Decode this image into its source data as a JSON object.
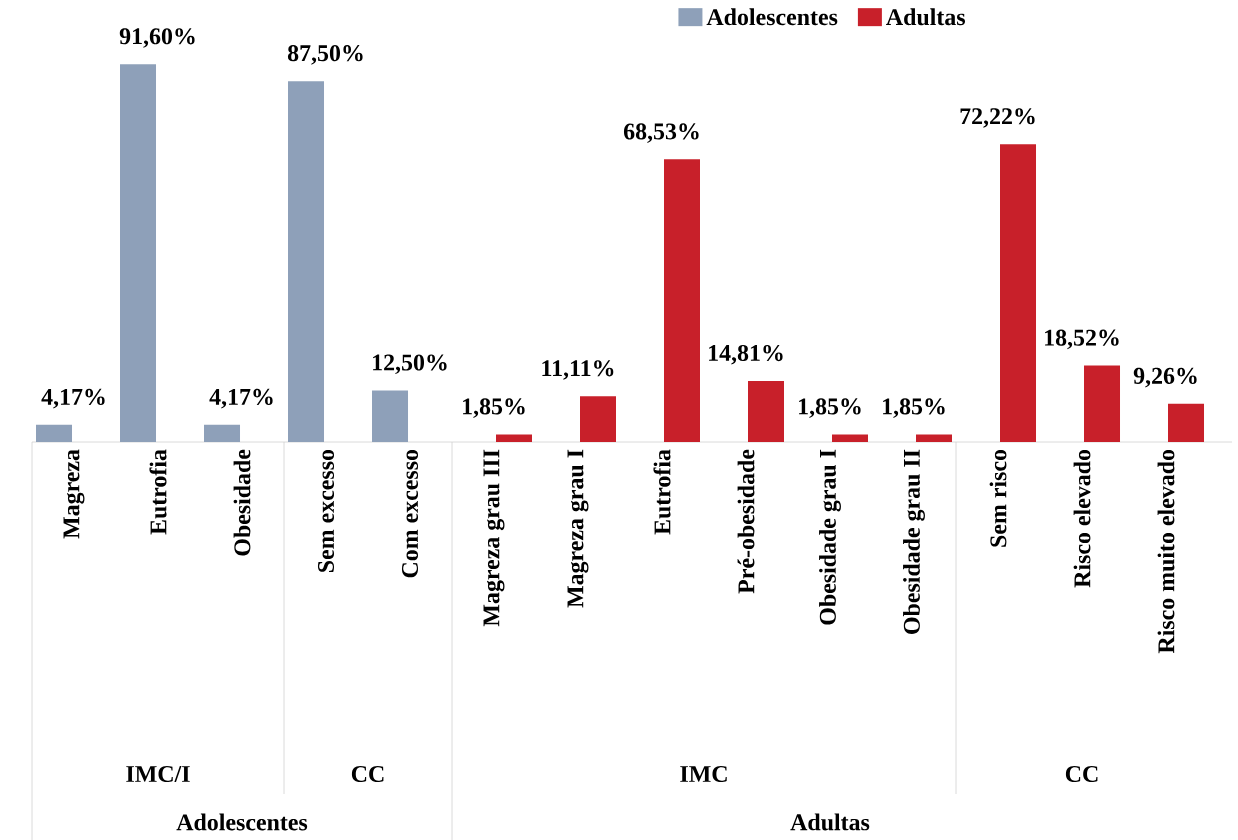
{
  "chart_data": {
    "type": "bar",
    "categories": [
      "Magreza",
      "Eutrofia",
      "Obesidade",
      "Sem excesso",
      "Com excesso",
      "Magreza grau III",
      "Magreza grau I",
      "Eutrofia",
      "Pré-obesidade",
      "Obesidade grau I",
      "Obesidade grau II",
      "Sem risco",
      "Risco elevado",
      "Risco muito elevado"
    ],
    "series": [
      {
        "name": "Adolescentes",
        "color": "#8ea0b9",
        "values": [
          4.17,
          91.6,
          4.17,
          87.5,
          12.5,
          null,
          null,
          null,
          null,
          null,
          null,
          null,
          null,
          null
        ],
        "value_labels": [
          "4,17%",
          "91,60%",
          "4,17%",
          "87,50%",
          "12,50%",
          null,
          null,
          null,
          null,
          null,
          null,
          null,
          null,
          null
        ]
      },
      {
        "name": "Adultas",
        "color": "#c8202a",
        "values": [
          null,
          null,
          null,
          null,
          null,
          1.85,
          11.11,
          68.53,
          14.81,
          1.85,
          1.85,
          72.22,
          18.52,
          9.26
        ],
        "value_labels": [
          null,
          null,
          null,
          null,
          null,
          "1,85%",
          "11,11%",
          "68,53%",
          "14,81%",
          "1,85%",
          "1,85%",
          "72,22%",
          "18,52%",
          "9,26%"
        ]
      }
    ],
    "annotations": [
      "IMC/I",
      "CC",
      "IMC",
      "CC",
      "Adolescentes",
      "Adultas"
    ],
    "legend": "top"
  }
}
